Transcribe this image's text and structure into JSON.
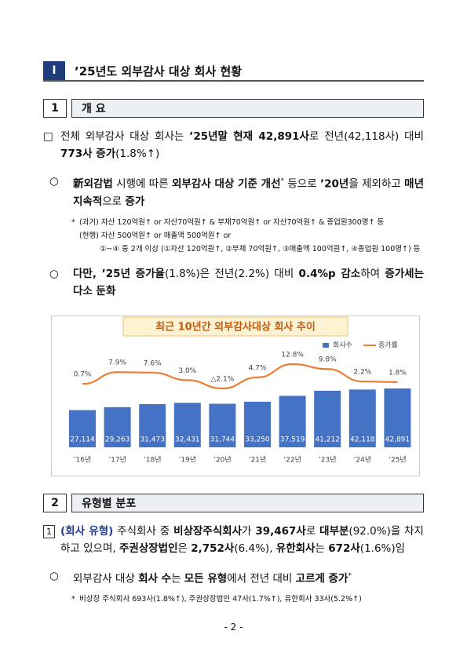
{
  "section": {
    "number": "Ⅰ",
    "title": "’25년도 외부감사 대상 회사 현황"
  },
  "overview": {
    "number": "1",
    "title": "개 요",
    "items": [
      {
        "marker": "□",
        "level": 0,
        "runs": [
          "전체 외부감사 대상 회사는 ",
          {
            "text": "’25년말 현재 42,891사",
            "bold": true
          },
          "로 전년(42,118사) 대비 ",
          {
            "text": "773사 증가",
            "bold": true
          },
          "(1.8%↑)"
        ]
      },
      {
        "marker": "○",
        "level": 1,
        "runs": [
          {
            "text": "新외감법",
            "bold": true
          },
          " 시행에 따른 ",
          {
            "text": "외부감사 대상 기준 개선",
            "bold": true
          },
          {
            "text": "*",
            "sup": true
          },
          " 등으로 ",
          {
            "text": "’20년",
            "bold": true
          },
          "을 제외하고 ",
          {
            "text": "매년 지속적",
            "bold": true
          },
          "으로 ",
          {
            "text": "증가",
            "bold": true
          }
        ]
      },
      {
        "marker": "*",
        "level": 2,
        "note": true,
        "runs": [
          "(과거) 자산 120억원↑ or 자산70억원↑ & 부채70억원↑ or 자산70억원↑ & 종업원300명↑ 등"
        ]
      },
      {
        "marker": "",
        "level": 2,
        "note": true,
        "runs": [
          "(현행) 자산 500억원↑ or 매출액 500억원↑ or"
        ]
      },
      {
        "marker": "",
        "level": 3,
        "note": true,
        "runs": [
          "①~④ 중 2개 이상 (①자산 120억원↑, ②부채 70억원↑, ③매출액 100억원↑, ④종업원 100명↑) 등"
        ]
      },
      {
        "marker": "○",
        "level": 1,
        "runs": [
          {
            "text": "다만, ’25년 증가율",
            "bold": true
          },
          "(1.8%)은 전년(2.2%) 대비 ",
          {
            "text": "0.4%p 감소",
            "bold": true
          },
          "하여 ",
          {
            "text": "증가세는 다소 둔화",
            "bold": true
          }
        ]
      }
    ]
  },
  "chart_data": {
    "type": "bar-line",
    "title": "최근 10년간 외부감사대상 회사 추이",
    "categories": [
      "’16년",
      "’17년",
      "’18년",
      "’19년",
      "’20년",
      "’21년",
      "’22년",
      "’23년",
      "’24년",
      "’25년"
    ],
    "series": [
      {
        "name": "회사수",
        "type": "bar",
        "color": "#4472c4",
        "values": [
          27114,
          29263,
          31473,
          32431,
          31744,
          33250,
          37519,
          41212,
          42118,
          42891
        ],
        "value_labels": [
          "27,114",
          "29,263",
          "31,473",
          "32,431",
          "31,744",
          "33,250",
          "37,519",
          "41,212",
          "42,118",
          "42,891"
        ]
      },
      {
        "name": "증가률",
        "type": "line",
        "axis": "y2",
        "color": "#ed7d31",
        "values": [
          0.7,
          7.9,
          7.6,
          3.0,
          -2.1,
          4.7,
          12.8,
          9.8,
          2.2,
          1.8
        ],
        "value_labels": [
          "0.7%",
          "7.9%",
          "7.6%",
          "3.0%",
          "△2.1%",
          "4.7%",
          "12.8%",
          "9.8%",
          "2.2%",
          "1.8%"
        ]
      }
    ],
    "legend": "top-right"
  },
  "distribution": {
    "number": "2",
    "title": "유형별 분포",
    "items": [
      {
        "marker": "1",
        "boxed": true,
        "level": 0,
        "runs": [
          {
            "text": "(회사 유형)",
            "bold": true,
            "color": "#1f3d99"
          },
          " 주식회사 중 ",
          {
            "text": "비상장주식회사",
            "bold": true
          },
          "가 ",
          {
            "text": "39,467사",
            "bold": true
          },
          "로 ",
          {
            "text": "대부분",
            "bold": true
          },
          "(92.0%)을 차지하고 있으며, ",
          {
            "text": "주권상장법인",
            "bold": true
          },
          "은 ",
          {
            "text": "2,752사",
            "bold": true
          },
          "(6.4%), ",
          {
            "text": "유한회사",
            "bold": true
          },
          "는 ",
          {
            "text": "672사",
            "bold": true
          },
          "(1.6%)임"
        ]
      },
      {
        "marker": "○",
        "level": 1,
        "runs": [
          "외부감사 대상 ",
          {
            "text": "회사 수",
            "bold": true
          },
          "는 ",
          {
            "text": "모든 유형",
            "bold": true
          },
          "에서 전년 대비 ",
          {
            "text": "고르게 증가",
            "bold": true
          },
          {
            "text": "*",
            "sup": true
          }
        ]
      },
      {
        "marker": "*",
        "level": 2,
        "note": true,
        "runs": [
          "비상장 주식회사 693사(1.8%↑), 주권상장법인 47사(1.7%↑), 유한회사 33사(5.2%↑)"
        ]
      }
    ]
  },
  "footer": "- 2 -"
}
